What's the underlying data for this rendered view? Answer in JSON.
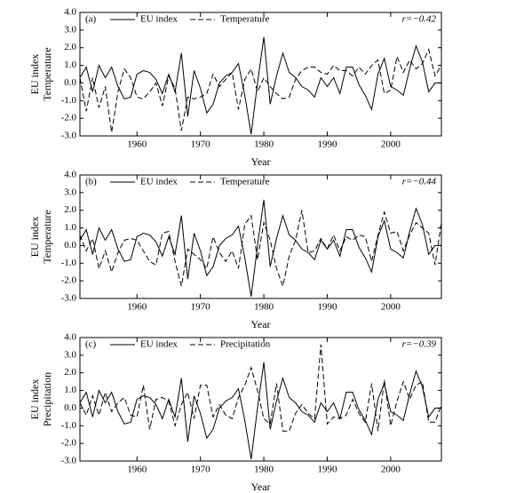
{
  "chart_data": [
    {
      "type": "line",
      "panel_label": "(a)",
      "annotation": "r=−0.42",
      "xlabel": "Year",
      "ylabel": [
        "EU index",
        "Temperature"
      ],
      "x": [
        1951,
        1952,
        1953,
        1954,
        1955,
        1956,
        1957,
        1958,
        1959,
        1960,
        1961,
        1962,
        1963,
        1964,
        1965,
        1966,
        1967,
        1968,
        1969,
        1970,
        1971,
        1972,
        1973,
        1974,
        1975,
        1976,
        1977,
        1978,
        1979,
        1980,
        1981,
        1982,
        1983,
        1984,
        1985,
        1986,
        1987,
        1988,
        1989,
        1990,
        1991,
        1992,
        1993,
        1994,
        1995,
        1996,
        1997,
        1998,
        1999,
        2000,
        2001,
        2002,
        2003,
        2004,
        2005,
        2006,
        2007,
        2008
      ],
      "series": [
        {
          "name": "EU index",
          "color": "#000000",
          "linestyle": "solid",
          "values": [
            0.3,
            0.9,
            -0.5,
            1.0,
            0.3,
            0.9,
            -0.2,
            -0.9,
            -0.8,
            0.5,
            0.7,
            0.6,
            0.2,
            -0.6,
            0.5,
            -0.5,
            1.7,
            -1.9,
            0.7,
            -0.3,
            -1.7,
            -1.2,
            0.0,
            0.4,
            0.6,
            1.1,
            -0.7,
            -2.9,
            0.0,
            2.6,
            -1.2,
            0.4,
            1.7,
            0.6,
            0.3,
            -0.2,
            -0.4,
            -0.8,
            0.3,
            -0.2,
            0.3,
            -0.6,
            0.9,
            0.9,
            -0.1,
            -0.7,
            -1.5,
            0.5,
            1.4,
            -0.2,
            -0.4,
            -0.7,
            0.8,
            2.1,
            1.2,
            -0.5,
            0.0,
            0.0
          ]
        },
        {
          "name": "Temperature",
          "color": "#000000",
          "linestyle": "dashed",
          "values": [
            0.3,
            -1.6,
            0.3,
            -1.4,
            -0.2,
            -2.8,
            -0.5,
            0.8,
            0.3,
            -0.8,
            -0.9,
            -0.5,
            0.0,
            -1.3,
            0.4,
            -0.3,
            -2.7,
            -0.8,
            -0.9,
            -0.8,
            -0.6,
            0.5,
            -0.2,
            0.2,
            0.6,
            -1.5,
            0.2,
            0.8,
            -0.5,
            0.3,
            -0.2,
            -0.6,
            -0.9,
            -0.8,
            0.2,
            0.7,
            0.9,
            0.9,
            0.6,
            0.5,
            1.0,
            0.7,
            0.7,
            0.4,
            0.9,
            0.5,
            1.0,
            1.3,
            -0.6,
            -0.4,
            1.5,
            0.6,
            1.3,
            0.8,
            1.1,
            1.9,
            0.4,
            1.0
          ]
        }
      ],
      "xlim": [
        1951,
        2008
      ],
      "xticks": [
        1960,
        1970,
        1980,
        1990,
        2000
      ],
      "ylim": [
        -3,
        4
      ],
      "yticks": [
        {
          "value": -3,
          "label": "-3.0"
        },
        {
          "value": -2,
          "label": "-2.0"
        },
        {
          "value": -1,
          "label": "-1.0"
        },
        {
          "value": 0,
          "label": "0.0"
        },
        {
          "value": 1,
          "label": "1.0"
        },
        {
          "value": 2,
          "label": "2.0"
        },
        {
          "value": 3,
          "label": "3.0"
        },
        {
          "value": 4,
          "label": "4.0"
        }
      ]
    },
    {
      "type": "line",
      "panel_label": "(b)",
      "annotation": "r=−0.44",
      "xlabel": "Year",
      "ylabel": [
        "EU index",
        "Temperature"
      ],
      "x": [
        1951,
        1952,
        1953,
        1954,
        1955,
        1956,
        1957,
        1958,
        1959,
        1960,
        1961,
        1962,
        1963,
        1964,
        1965,
        1966,
        1967,
        1968,
        1969,
        1970,
        1971,
        1972,
        1973,
        1974,
        1975,
        1976,
        1977,
        1978,
        1979,
        1980,
        1981,
        1982,
        1983,
        1984,
        1985,
        1986,
        1987,
        1988,
        1989,
        1990,
        1991,
        1992,
        1993,
        1994,
        1995,
        1996,
        1997,
        1998,
        1999,
        2000,
        2001,
        2002,
        2003,
        2004,
        2005,
        2006,
        2007,
        2008
      ],
      "series": [
        {
          "name": "EU index",
          "color": "#000000",
          "linestyle": "solid",
          "values": [
            0.3,
            0.9,
            -0.5,
            1.0,
            0.3,
            0.9,
            -0.2,
            -0.9,
            -0.8,
            0.5,
            0.7,
            0.6,
            0.2,
            -0.6,
            0.5,
            -0.5,
            1.7,
            -1.9,
            0.7,
            -0.3,
            -1.7,
            -1.2,
            0.0,
            0.4,
            0.6,
            1.1,
            -0.7,
            -2.9,
            0.0,
            2.6,
            -1.2,
            0.4,
            1.7,
            0.6,
            0.3,
            -0.2,
            -0.4,
            -0.8,
            0.3,
            -0.2,
            0.3,
            -0.6,
            0.9,
            0.9,
            -0.1,
            -0.7,
            -1.5,
            0.5,
            1.4,
            -0.2,
            -0.4,
            -0.7,
            0.8,
            2.1,
            1.2,
            -0.5,
            0.0,
            0.0
          ]
        },
        {
          "name": "Temperature",
          "color": "#000000",
          "linestyle": "dashed",
          "values": [
            0.6,
            -0.3,
            0.4,
            -1.3,
            -0.3,
            -1.5,
            -0.4,
            0.3,
            0.4,
            0.3,
            -0.3,
            -0.9,
            -1.1,
            0.7,
            0.8,
            -0.9,
            -2.3,
            -0.2,
            -0.5,
            -0.8,
            -1.3,
            0.5,
            -0.4,
            -0.9,
            -0.3,
            -1.3,
            1.2,
            1.7,
            -0.8,
            1.3,
            0.3,
            -1.3,
            -2.3,
            -0.6,
            0.3,
            2.0,
            -0.4,
            -0.3,
            0.4,
            -0.2,
            0.6,
            -0.3,
            0.5,
            0.3,
            0.6,
            0.5,
            -0.9,
            0.6,
            1.9,
            0.7,
            0.8,
            -0.3,
            0.6,
            1.3,
            1.0,
            0.7,
            -1.1,
            1.3
          ]
        }
      ],
      "xlim": [
        1951,
        2008
      ],
      "xticks": [
        1960,
        1970,
        1980,
        1990,
        2000
      ],
      "ylim": [
        -3,
        4
      ],
      "yticks": [
        {
          "value": -3,
          "label": "-3.0"
        },
        {
          "value": -2,
          "label": "-2.0"
        },
        {
          "value": -1,
          "label": "-1.0"
        },
        {
          "value": 0,
          "label": "0.0"
        },
        {
          "value": 1,
          "label": "1.0"
        },
        {
          "value": 2,
          "label": "2.0"
        },
        {
          "value": 3,
          "label": "3.0"
        },
        {
          "value": 4,
          "label": "4.0"
        }
      ]
    },
    {
      "type": "line",
      "panel_label": "(c)",
      "annotation": "r=−0.39",
      "xlabel": "Year",
      "ylabel": [
        "EU index",
        "Precipitation"
      ],
      "x": [
        1951,
        1952,
        1953,
        1954,
        1955,
        1956,
        1957,
        1958,
        1959,
        1960,
        1961,
        1962,
        1963,
        1964,
        1965,
        1966,
        1967,
        1968,
        1969,
        1970,
        1971,
        1972,
        1973,
        1974,
        1975,
        1976,
        1977,
        1978,
        1979,
        1980,
        1981,
        1982,
        1983,
        1984,
        1985,
        1986,
        1987,
        1988,
        1989,
        1990,
        1991,
        1992,
        1993,
        1994,
        1995,
        1996,
        1997,
        1998,
        1999,
        2000,
        2001,
        2002,
        2003,
        2004,
        2005,
        2006,
        2007,
        2008
      ],
      "series": [
        {
          "name": "EU index",
          "color": "#000000",
          "linestyle": "solid",
          "values": [
            0.3,
            0.9,
            -0.5,
            1.0,
            0.3,
            0.9,
            -0.2,
            -0.9,
            -0.8,
            0.5,
            0.7,
            0.6,
            0.2,
            -0.6,
            0.5,
            -0.5,
            1.7,
            -1.9,
            0.7,
            -0.3,
            -1.7,
            -1.2,
            0.0,
            0.4,
            0.6,
            1.1,
            -0.7,
            -2.9,
            0.0,
            2.6,
            -1.2,
            0.4,
            1.7,
            0.6,
            0.3,
            -0.2,
            -0.4,
            -0.8,
            0.3,
            -0.2,
            0.3,
            -0.6,
            0.9,
            0.9,
            -0.1,
            -0.7,
            -1.5,
            0.5,
            1.4,
            -0.2,
            -0.4,
            -0.7,
            0.8,
            2.1,
            1.2,
            -0.5,
            0.0,
            0.0
          ]
        },
        {
          "name": "Precipitation",
          "color": "#000000",
          "linestyle": "dashed",
          "values": [
            0.3,
            -0.4,
            0.7,
            -0.4,
            0.9,
            -0.2,
            0.3,
            0.6,
            -0.4,
            -0.5,
            1.3,
            -1.2,
            0.5,
            0.6,
            0.4,
            -1.0,
            0.2,
            0.9,
            -0.6,
            1.3,
            1.3,
            -0.5,
            0.2,
            -0.4,
            -0.6,
            0.6,
            1.3,
            2.3,
            1.0,
            -0.6,
            -0.9,
            1.4,
            -1.3,
            -1.3,
            -0.3,
            0.2,
            -0.3,
            -0.6,
            3.6,
            -0.9,
            -0.5,
            -0.6,
            -0.4,
            0.5,
            -0.3,
            -0.8,
            1.4,
            -1.3,
            1.6,
            -1.0,
            0.4,
            1.5,
            0.5,
            1.3,
            1.5,
            -0.8,
            -0.8,
            0.2
          ]
        }
      ],
      "xlim": [
        1951,
        2008
      ],
      "xticks": [
        1960,
        1970,
        1980,
        1990,
        2000
      ],
      "ylim": [
        -3,
        4
      ],
      "yticks": [
        {
          "value": -3,
          "label": "-3.0"
        },
        {
          "value": -2,
          "label": "-2.0"
        },
        {
          "value": -1,
          "label": "-1.0"
        },
        {
          "value": 0,
          "label": "0.0"
        },
        {
          "value": 1,
          "label": "1.0"
        },
        {
          "value": 2,
          "label": "2.0"
        },
        {
          "value": 3,
          "label": "3.0"
        },
        {
          "value": 4,
          "label": "4.0"
        }
      ]
    }
  ]
}
